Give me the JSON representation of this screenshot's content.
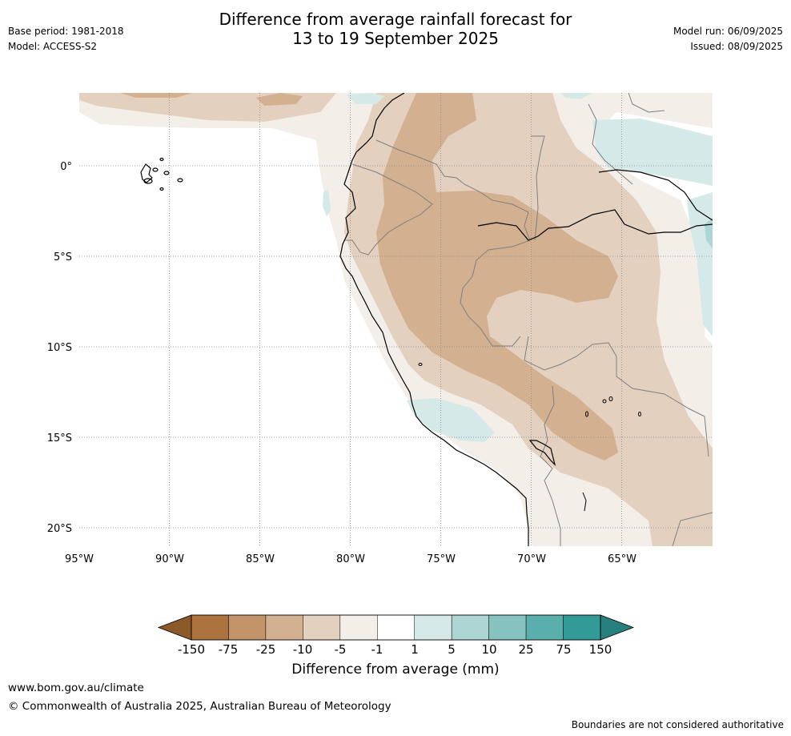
{
  "title": {
    "line1": "Difference from average rainfall forecast for",
    "line2": "13 to 19 September 2025"
  },
  "meta": {
    "base_period": "Base period: 1981-2018",
    "model": "Model: ACCESS-S2",
    "model_run": "Model run: 06/09/2025",
    "issued": "Issued: 08/09/2025"
  },
  "map": {
    "lon_labels": [
      "95°W",
      "90°W",
      "85°W",
      "80°W",
      "75°W",
      "70°W",
      "65°W"
    ],
    "lat_labels": [
      "0°",
      "5°S",
      "10°S",
      "15°S",
      "20°S"
    ],
    "colors": {
      "below_150": "#8c5a2a",
      "n150_75": "#ad733e",
      "n75_25": "#c39469",
      "n25_10": "#d2b090",
      "n10_5": "#e3d0be",
      "n5_1": "#f3eee8",
      "n1_1": "#ffffff",
      "p1_5": "#d5e9e8",
      "p5_10": "#acd5d4",
      "p10_25": "#85c2c0",
      "p25_75": "#5aaeac",
      "p75_150": "#329b98",
      "above_150": "#27807d"
    }
  },
  "colorbar": {
    "ticks": [
      "-150",
      "-75",
      "-25",
      "-10",
      "-5",
      "-1",
      "1",
      "5",
      "10",
      "25",
      "75",
      "150"
    ],
    "title": "Difference from average (mm)"
  },
  "footer": {
    "url": "www.bom.gov.au/climate",
    "copyright": "© Commonwealth of Australia 2025, Australian Bureau of Meteorology",
    "note": "Boundaries are not considered authoritative"
  }
}
